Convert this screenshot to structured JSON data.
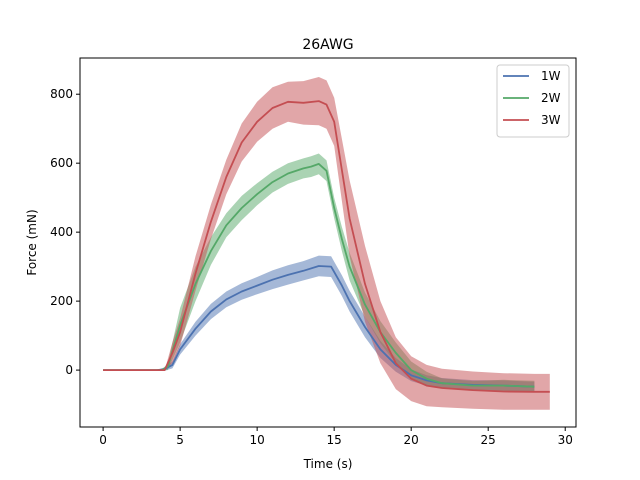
{
  "chart_data": {
    "type": "line",
    "title": "26AWG",
    "xlabel": "Time (s)",
    "ylabel": "Force (mN)",
    "xlim": [
      -1.5,
      30.7
    ],
    "ylim": [
      -165,
      905
    ],
    "xticks": [
      0,
      5,
      10,
      15,
      20,
      25,
      30
    ],
    "yticks": [
      0,
      200,
      400,
      600,
      800
    ],
    "grid": false,
    "legend_position": "top-right",
    "series": [
      {
        "name": "1W",
        "color": "#4c72b0",
        "x": [
          0,
          3.5,
          4,
          4.5,
          5,
          6,
          7,
          8,
          9,
          10,
          11,
          12,
          13,
          14,
          14.8,
          15.5,
          16,
          17,
          18,
          19,
          20,
          21,
          22,
          24,
          26,
          28
        ],
        "y": [
          0,
          0,
          3,
          15,
          60,
          120,
          170,
          205,
          228,
          245,
          262,
          276,
          288,
          302,
          300,
          245,
          200,
          125,
          60,
          15,
          -15,
          -30,
          -38,
          -43,
          -45,
          -48
        ],
        "lower": [
          0,
          0,
          -2,
          5,
          45,
          100,
          148,
          182,
          204,
          220,
          235,
          248,
          260,
          272,
          270,
          215,
          170,
          95,
          35,
          -5,
          -32,
          -45,
          -53,
          -57,
          -60,
          -62
        ],
        "upper": [
          0,
          0,
          8,
          25,
          75,
          140,
          192,
          228,
          252,
          270,
          289,
          304,
          316,
          332,
          330,
          275,
          230,
          155,
          85,
          35,
          2,
          -15,
          -23,
          -29,
          -30,
          -34
        ]
      },
      {
        "name": "2W",
        "color": "#55a868",
        "x": [
          0,
          3.8,
          4.2,
          5,
          6,
          7,
          8,
          9,
          10,
          11,
          12,
          13,
          13.5,
          14,
          14.5,
          15,
          15.5,
          16,
          17,
          18,
          19,
          20,
          21,
          22,
          24,
          26,
          28
        ],
        "y": [
          0,
          0,
          10,
          130,
          250,
          345,
          420,
          470,
          510,
          545,
          570,
          585,
          590,
          598,
          578,
          470,
          380,
          300,
          190,
          110,
          50,
          0,
          -25,
          -38,
          -45,
          -45,
          -48
        ],
        "lower": [
          0,
          0,
          0,
          80,
          200,
          305,
          385,
          435,
          478,
          515,
          540,
          556,
          560,
          568,
          548,
          440,
          345,
          260,
          155,
          78,
          20,
          -25,
          -45,
          -52,
          -58,
          -62,
          -65
        ],
        "upper": [
          0,
          0,
          20,
          180,
          300,
          385,
          455,
          505,
          542,
          575,
          600,
          614,
          620,
          628,
          608,
          500,
          415,
          340,
          225,
          142,
          80,
          25,
          -5,
          -24,
          -32,
          -28,
          -31
        ]
      },
      {
        "name": "3W",
        "color": "#c44e52",
        "x": [
          0,
          4,
          4.5,
          5,
          6,
          7,
          8,
          9,
          10,
          11,
          12,
          13,
          14,
          14.5,
          15,
          15.5,
          16,
          17,
          18,
          19,
          20,
          21,
          22,
          24,
          26,
          28,
          29
        ],
        "y": [
          0,
          0,
          50,
          110,
          280,
          430,
          560,
          660,
          720,
          760,
          778,
          775,
          780,
          770,
          720,
          580,
          440,
          250,
          110,
          20,
          -25,
          -45,
          -52,
          -58,
          -62,
          -63,
          -63
        ],
        "lower": [
          0,
          0,
          20,
          70,
          230,
          380,
          510,
          605,
          662,
          700,
          720,
          712,
          710,
          700,
          650,
          490,
          330,
          140,
          20,
          -55,
          -90,
          -105,
          -108,
          -112,
          -115,
          -115,
          -115
        ],
        "upper": [
          0,
          0,
          80,
          150,
          330,
          480,
          610,
          715,
          778,
          820,
          836,
          838,
          850,
          840,
          790,
          670,
          550,
          360,
          200,
          95,
          40,
          15,
          4,
          -4,
          -9,
          -11,
          -11
        ]
      }
    ]
  }
}
